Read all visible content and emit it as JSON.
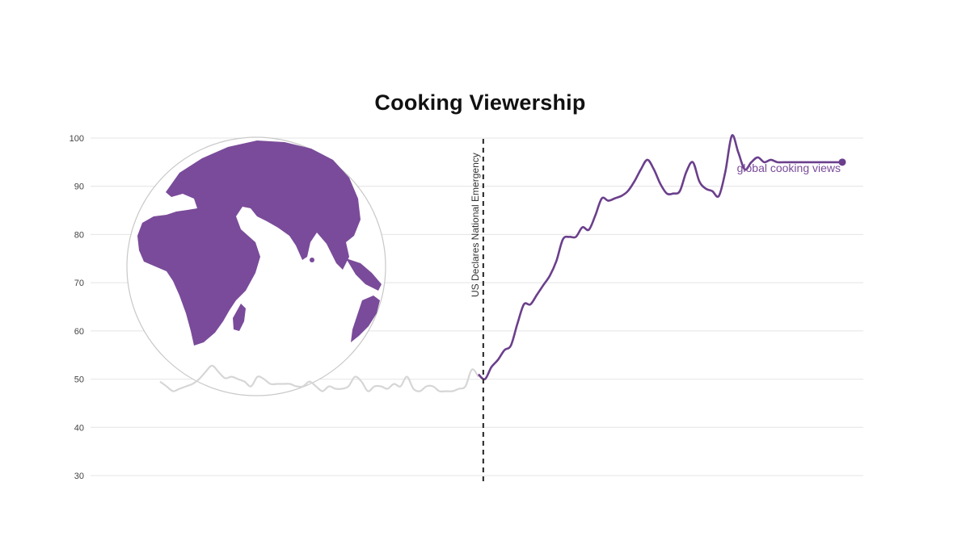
{
  "chart_data": {
    "type": "line",
    "title": "Cooking Viewership",
    "xlabel": "",
    "ylabel": "",
    "ylim": [
      30,
      100
    ],
    "y_ticks": [
      100,
      90,
      80,
      70,
      60,
      50,
      40,
      30
    ],
    "grid": true,
    "event": {
      "label": "US Declares National Emergency",
      "x": 49
    },
    "series": [
      {
        "name": "",
        "role": "before-emergency",
        "color": "#d6d6d6",
        "x": [
          0,
          1,
          2,
          3,
          4,
          5,
          6,
          7,
          8,
          9,
          10,
          11,
          12,
          13,
          14,
          15,
          16,
          17,
          18,
          19,
          20,
          21,
          22,
          23,
          24,
          25,
          26,
          27,
          28,
          29,
          30,
          31,
          32,
          33,
          34,
          35,
          36,
          37,
          38,
          39,
          40,
          41,
          42,
          43,
          44,
          45,
          46,
          47,
          48,
          49
        ],
        "values": [
          49.5,
          48.5,
          47.5,
          48.0,
          48.5,
          49.0,
          50.0,
          51.5,
          52.8,
          51.5,
          50.2,
          50.5,
          50.0,
          49.5,
          48.5,
          50.5,
          50.0,
          49.0,
          49.0,
          49.0,
          49.0,
          48.5,
          48.5,
          49.5,
          48.5,
          47.5,
          48.5,
          48.0,
          48.0,
          48.5,
          50.5,
          49.5,
          47.5,
          48.5,
          48.5,
          48.0,
          49.0,
          48.5,
          50.5,
          48.0,
          47.5,
          48.5,
          48.5,
          47.5,
          47.5,
          47.5,
          48.0,
          48.5,
          52.0,
          50.5
        ]
      },
      {
        "name": "global cooking views",
        "role": "after-emergency",
        "color": "#6b3f8c",
        "x": [
          49,
          50,
          51,
          52,
          53,
          54,
          55,
          56,
          57,
          58,
          59,
          60,
          61,
          62,
          63,
          64,
          65,
          66,
          67,
          68,
          69,
          70,
          71,
          72,
          73,
          74,
          75,
          76,
          77,
          78,
          79,
          80,
          81,
          82,
          83,
          84,
          85,
          86,
          87,
          88,
          89,
          90,
          91,
          92,
          93,
          94,
          95,
          96,
          97,
          98,
          99,
          100,
          101,
          102,
          103,
          104,
          105
        ],
        "values": [
          51.0,
          50.0,
          52.5,
          54.0,
          56.0,
          57.0,
          61.5,
          65.5,
          65.5,
          67.5,
          69.5,
          71.5,
          74.5,
          79.0,
          79.5,
          79.5,
          81.5,
          81.0,
          84.0,
          87.5,
          87.0,
          87.5,
          88.0,
          89.0,
          91.0,
          93.5,
          95.5,
          93.5,
          90.5,
          88.5,
          88.5,
          89.0,
          93.0,
          95.0,
          91.0,
          89.5,
          89.0,
          88.0,
          93.0,
          100.5,
          97.0,
          93.5,
          95.0,
          96.0,
          95.0,
          95.5,
          95.0,
          95.0,
          95.0,
          95.0,
          95.0,
          95.0,
          95.0,
          95.0,
          95.0,
          95.0,
          95.0
        ]
      }
    ]
  },
  "globe": {
    "fill": "#7a4b9a",
    "outline": "#c8c8c8"
  }
}
